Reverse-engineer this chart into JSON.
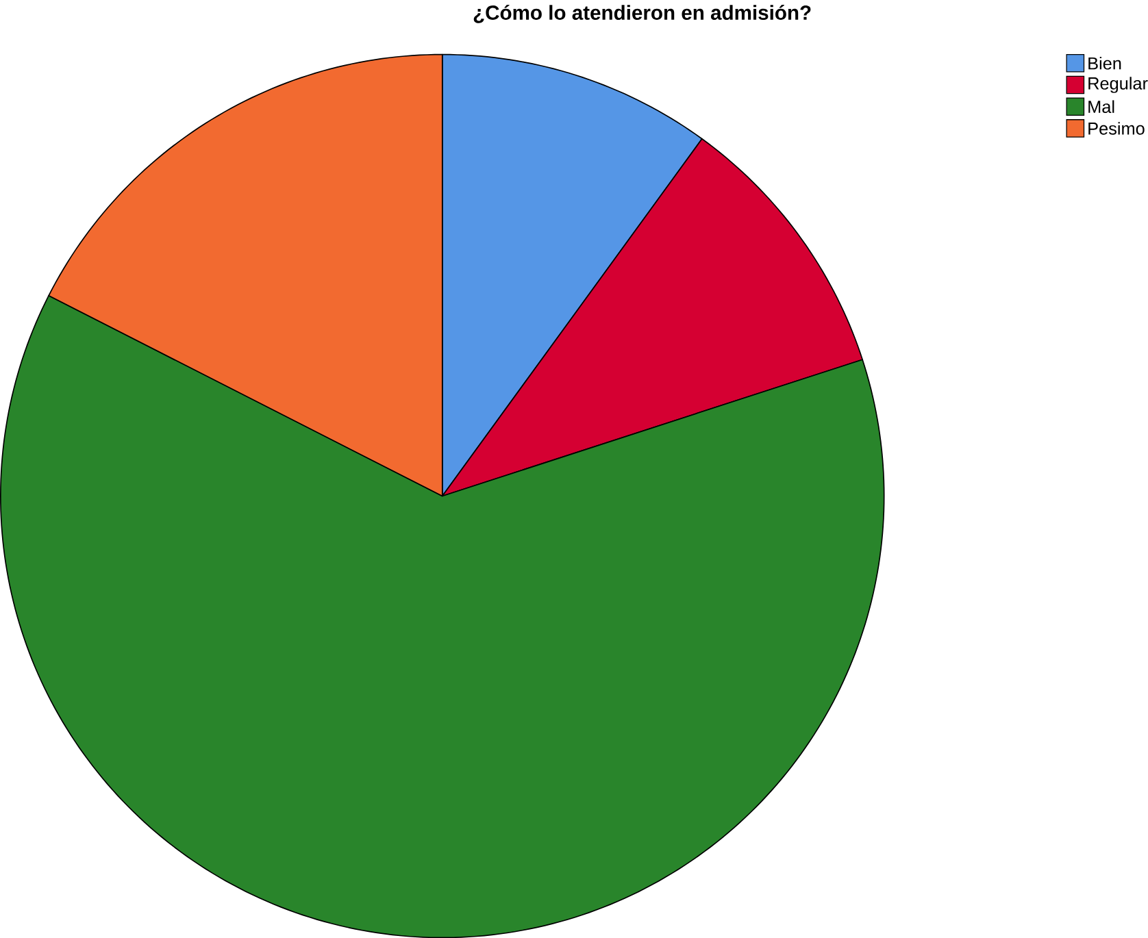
{
  "chart_data": {
    "type": "pie",
    "title": "¿Cómo lo atendieron en admisión?",
    "categories": [
      "Bien",
      "Regular",
      "Mal",
      "Pesimo"
    ],
    "values": [
      10,
      10,
      62.5,
      17.5
    ],
    "colors": [
      "#5596e6",
      "#d50032",
      "#29852b",
      "#f26a30"
    ],
    "legend": "top right"
  }
}
